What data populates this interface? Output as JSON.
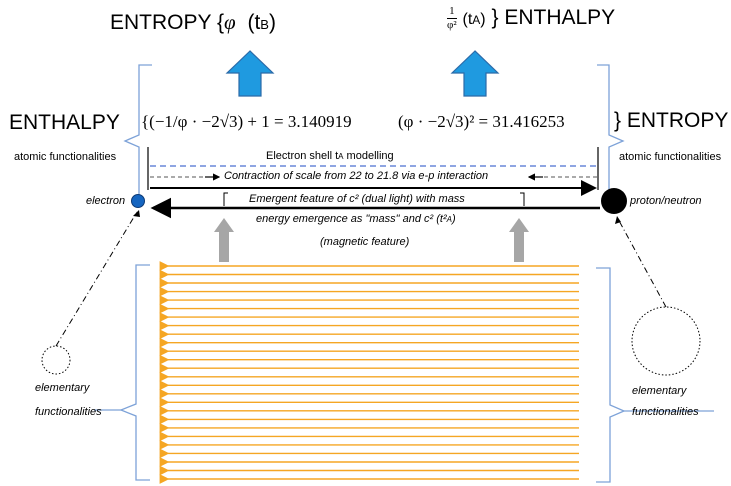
{
  "top_labels": {
    "left": "ENTROPY {",
    "left_phi": "φ",
    "left_t": "(t",
    "left_t_sub": "B",
    "left_close": ")",
    "right_frac_num": "1",
    "right_frac_den": "φ²",
    "right_t": "(t",
    "right_t_sub": "A",
    "right_close": ")",
    "right_text": "} ENTHALPY"
  },
  "middle_labels": {
    "left_word": "ENTHALPY",
    "left_formula": "{(−1/φ · −2√3) + 1 = 3.140919",
    "right_formula": "(φ · −2√3)² = 31.416253",
    "right_word": "} ENTROPY"
  },
  "side_labels": {
    "atomic_left": "atomic functionalities",
    "atomic_right": "atomic functionalities",
    "electron": "electron",
    "proton": "proton/neutron",
    "elementary_left_1": "elementary",
    "elementary_left_2": "functionalities",
    "elementary_right_1": "elementary",
    "elementary_right_2": "functionalities"
  },
  "center_labels": {
    "shell": "Electron shell t",
    "shell_sub": "A",
    "shell_tail": " modelling",
    "contraction": "Contraction of scale from 22 to 21.8 via e-p interaction",
    "emergent": "Emergent feature of c² (dual light) with mass",
    "energy": "energy emergence as \"mass\" and  c² (t²",
    "energy_sub": "A",
    "energy_tail": ")",
    "magnetic": "(magnetic feature)"
  },
  "colors": {
    "blue_arrow": "#1f9ae0",
    "blue_arrow_edge": "#2b6aa8",
    "electron_fill": "#1565c0",
    "proton_fill": "#000000",
    "dashed_blue": "#4a6fd0",
    "bracket_blue": "#7da2d8",
    "orange": "#f5a623",
    "gray_arrow": "#a6a6a6"
  },
  "icons": {
    "up_arrows": "blue-up-arrow-icon",
    "electron": "electron-circle-icon",
    "proton": "proton-circle-icon"
  }
}
